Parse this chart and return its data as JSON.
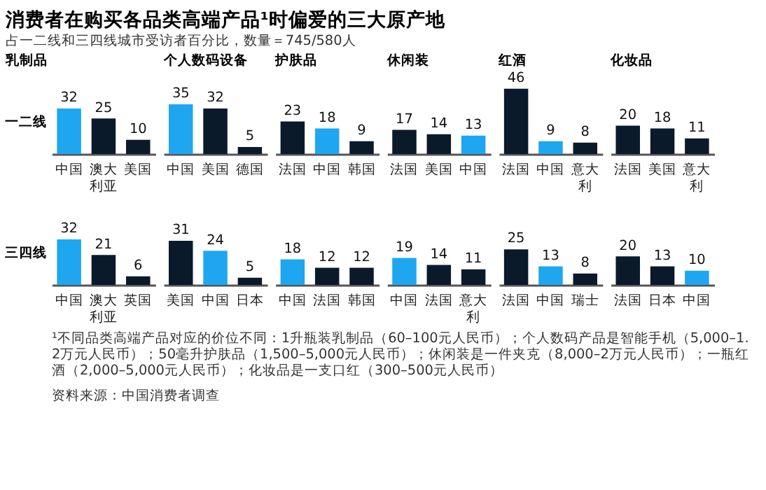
{
  "chart_data": [
    {
      "type": "other",
      "title": "消费者在购买各品类高端产品¹时偏爱的三大原产地",
      "subtitle": "占一二线和三四线城市受访者百分比，数量＝745/580人",
      "annotations": [
        "¹不同品类高端产品对应的价位不同：1升瓶装乳制品（60–100元人民币）；个人数码产品是智能手机（5,000–1.2万元人民币）；50毫升护肤品（1,500–5,000元人民币）；休闲装是一件夹克（8,000–2万元人民币）；一瓶红酒（2,000–5,000元人民币）；化妆品是一支口红（300–500元人民币）",
        "资料来源：中国消费者调查"
      ]
    },
    {
      "type": "bar",
      "title": "乳制品",
      "ylabel": "一二线",
      "categories": [
        "中国",
        "澳大利亚",
        "美国"
      ],
      "values": [
        32,
        25,
        10
      ],
      "colors": [
        "#1ea7f0",
        "#0b1a2b",
        "#0b1a2b"
      ],
      "data_labels": true
    },
    {
      "type": "bar",
      "title": "个人数码设备",
      "categories": [
        "中国",
        "美国",
        "德国"
      ],
      "values": [
        35,
        32,
        5
      ],
      "colors": [
        "#1ea7f0",
        "#0b1a2b",
        "#0b1a2b"
      ],
      "data_labels": true
    },
    {
      "type": "bar",
      "title": "护肤品",
      "categories": [
        "法国",
        "中国",
        "韩国"
      ],
      "values": [
        23,
        18,
        9
      ],
      "colors": [
        "#0b1a2b",
        "#1ea7f0",
        "#0b1a2b"
      ],
      "data_labels": true
    },
    {
      "type": "bar",
      "title": "休闲装",
      "categories": [
        "法国",
        "美国",
        "中国"
      ],
      "values": [
        17,
        14,
        13
      ],
      "colors": [
        "#0b1a2b",
        "#0b1a2b",
        "#1ea7f0"
      ],
      "data_labels": true
    },
    {
      "type": "bar",
      "title": "红酒",
      "categories": [
        "法国",
        "中国",
        "意大利"
      ],
      "values": [
        46,
        9,
        8
      ],
      "colors": [
        "#0b1a2b",
        "#1ea7f0",
        "#0b1a2b"
      ],
      "data_labels": true
    },
    {
      "type": "bar",
      "title": "化妆品",
      "categories": [
        "法国",
        "美国",
        "意大利"
      ],
      "values": [
        20,
        18,
        11
      ],
      "colors": [
        "#0b1a2b",
        "#0b1a2b",
        "#0b1a2b"
      ],
      "data_labels": true
    },
    {
      "type": "bar",
      "ylabel": "三四线",
      "categories": [
        "中国",
        "澳大利亚",
        "英国"
      ],
      "values": [
        32,
        21,
        6
      ],
      "colors": [
        "#1ea7f0",
        "#0b1a2b",
        "#0b1a2b"
      ],
      "data_labels": true
    },
    {
      "type": "bar",
      "categories": [
        "美国",
        "中国",
        "日本"
      ],
      "values": [
        31,
        24,
        5
      ],
      "colors": [
        "#0b1a2b",
        "#1ea7f0",
        "#0b1a2b"
      ],
      "data_labels": true
    },
    {
      "type": "bar",
      "categories": [
        "中国",
        "法国",
        "韩国"
      ],
      "values": [
        18,
        12,
        12
      ],
      "colors": [
        "#1ea7f0",
        "#0b1a2b",
        "#0b1a2b"
      ],
      "data_labels": true
    },
    {
      "type": "bar",
      "categories": [
        "中国",
        "法国",
        "意大利"
      ],
      "values": [
        19,
        14,
        11
      ],
      "colors": [
        "#1ea7f0",
        "#0b1a2b",
        "#0b1a2b"
      ],
      "data_labels": true
    },
    {
      "type": "bar",
      "categories": [
        "法国",
        "中国",
        "瑞士"
      ],
      "values": [
        25,
        13,
        8
      ],
      "colors": [
        "#0b1a2b",
        "#1ea7f0",
        "#0b1a2b"
      ],
      "data_labels": true
    },
    {
      "type": "bar",
      "categories": [
        "法国",
        "日本",
        "中国"
      ],
      "values": [
        20,
        13,
        10
      ],
      "colors": [
        "#0b1a2b",
        "#0b1a2b",
        "#1ea7f0"
      ],
      "data_labels": true
    }
  ]
}
